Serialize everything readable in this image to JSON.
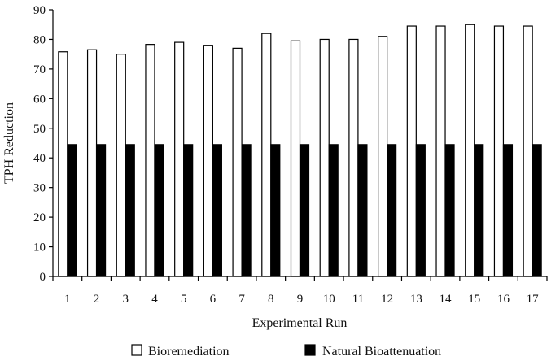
{
  "chart_data": {
    "type": "bar",
    "title": "",
    "xlabel": "Experimental Run",
    "ylabel": "TPH Reduction",
    "ylim": [
      0,
      90
    ],
    "yticks": [
      0,
      10,
      20,
      30,
      40,
      50,
      60,
      70,
      80,
      90
    ],
    "grid": false,
    "legend_position": "bottom",
    "categories": [
      "1",
      "2",
      "3",
      "4",
      "5",
      "6",
      "7",
      "8",
      "9",
      "10",
      "11",
      "12",
      "13",
      "14",
      "15",
      "16",
      "17"
    ],
    "series": [
      {
        "name": "Bioremediation",
        "color": "#ffffff",
        "values": [
          75.8,
          76.5,
          75.0,
          78.3,
          79.0,
          78.0,
          77.0,
          82.0,
          79.5,
          80.0,
          80.0,
          81.0,
          84.5,
          84.5,
          85.0,
          84.5,
          84.5
        ]
      },
      {
        "name": "Natural Bioattenuation",
        "color": "#000000",
        "values": [
          44.5,
          44.5,
          44.5,
          44.5,
          44.5,
          44.5,
          44.5,
          44.5,
          44.5,
          44.5,
          44.5,
          44.5,
          44.5,
          44.5,
          44.5,
          44.5,
          44.5
        ]
      }
    ]
  }
}
